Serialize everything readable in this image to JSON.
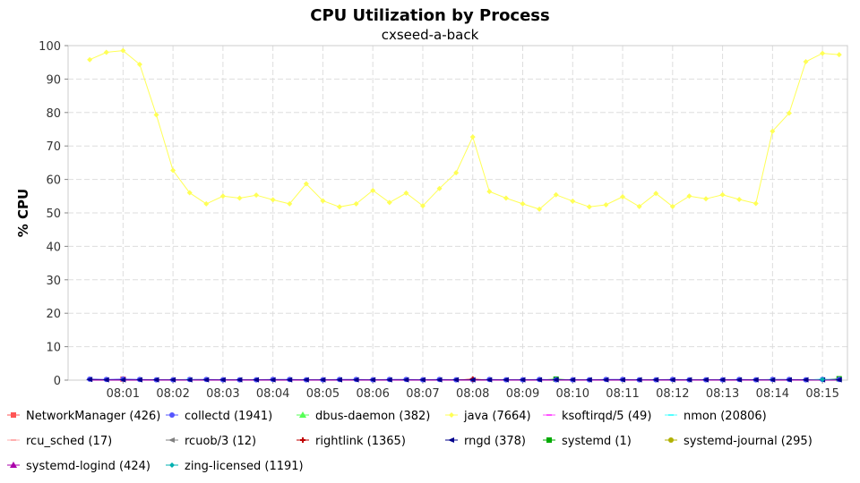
{
  "chart_data": {
    "type": "line",
    "title": "CPU Utilization by Process",
    "subtitle": "cxseed-a-back",
    "ylabel": "% CPU",
    "xlabel": "",
    "ylim": [
      0,
      100
    ],
    "yticks": [
      0,
      10,
      20,
      30,
      40,
      50,
      60,
      70,
      80,
      90,
      100
    ],
    "xlim": [
      "07:59:54",
      "08:15:30"
    ],
    "xticks": [
      "08:01",
      "08:02",
      "08:03",
      "08:04",
      "08:05",
      "08:06",
      "08:07",
      "08:08",
      "08:09",
      "08:10",
      "08:11",
      "08:12",
      "08:13",
      "08:14",
      "08:15"
    ],
    "grid": true,
    "legend_position": "bottom",
    "x": [
      "08:00:20",
      "08:00:40",
      "08:01:00",
      "08:01:20",
      "08:01:40",
      "08:02:00",
      "08:02:20",
      "08:02:40",
      "08:03:00",
      "08:03:20",
      "08:03:40",
      "08:04:00",
      "08:04:20",
      "08:04:40",
      "08:05:00",
      "08:05:20",
      "08:05:40",
      "08:06:00",
      "08:06:20",
      "08:06:40",
      "08:07:00",
      "08:07:20",
      "08:07:40",
      "08:08:00",
      "08:08:20",
      "08:08:40",
      "08:09:00",
      "08:09:20",
      "08:09:40",
      "08:10:00",
      "08:10:20",
      "08:10:40",
      "08:11:00",
      "08:11:20",
      "08:11:40",
      "08:12:00",
      "08:12:20",
      "08:12:40",
      "08:13:00",
      "08:13:20",
      "08:13:40",
      "08:14:00",
      "08:14:20",
      "08:14:40",
      "08:15:00",
      "08:15:20"
    ],
    "series": [
      {
        "name": "NetworkManager (426)",
        "color": "#ff5555",
        "marker": "square",
        "values": [
          0,
          0,
          0.3,
          0,
          0,
          0,
          0,
          0,
          0,
          0,
          0,
          0,
          0,
          0,
          0,
          0,
          0,
          0,
          0,
          0,
          0,
          0,
          0,
          0,
          0,
          0,
          0,
          0,
          0,
          0,
          0,
          0,
          0,
          0,
          0,
          0,
          0,
          0,
          0,
          0,
          0,
          0,
          0,
          0,
          0,
          0
        ]
      },
      {
        "name": "collectd (1941)",
        "color": "#5555ff",
        "marker": "circle",
        "values": [
          0.3,
          0.2,
          0.3,
          0.2,
          0.1,
          0.1,
          0.2,
          0.2,
          0.1,
          0.1,
          0.1,
          0.2,
          0.2,
          0.1,
          0.1,
          0.2,
          0.2,
          0.1,
          0.2,
          0.2,
          0.1,
          0.2,
          0.1,
          0.1,
          0.2,
          0.1,
          0.1,
          0.2,
          0.1,
          0.1,
          0.1,
          0.2,
          0.2,
          0.1,
          0.1,
          0.2,
          0.1,
          0.1,
          0.1,
          0.2,
          0.1,
          0.2,
          0.2,
          0.1,
          0.2,
          0.2
        ]
      },
      {
        "name": "dbus-daemon (382)",
        "color": "#55ff55",
        "marker": "triangle",
        "values": [
          0,
          0,
          0,
          0,
          0,
          0,
          0,
          0,
          0,
          0,
          0,
          0,
          0,
          0,
          0,
          0,
          0,
          0,
          0,
          0,
          0,
          0,
          0,
          0,
          0,
          0,
          0,
          0,
          0,
          0,
          0,
          0,
          0,
          0,
          0,
          0,
          0,
          0,
          0,
          0,
          0,
          0,
          0,
          0,
          0,
          0
        ]
      },
      {
        "name": "java (7664)",
        "color": "#ffff55",
        "marker": "diamond",
        "values": [
          95.8,
          98.0,
          98.5,
          94.4,
          79.3,
          62.7,
          56.0,
          52.7,
          55.0,
          54.4,
          55.3,
          53.9,
          52.7,
          58.7,
          53.6,
          51.8,
          52.7,
          56.7,
          53.1,
          55.9,
          52.1,
          57.3,
          62.0,
          72.7,
          56.4,
          54.4,
          52.7,
          51.1,
          55.4,
          53.5,
          51.8,
          52.4,
          54.8,
          51.9,
          55.8,
          51.9,
          55.0,
          54.2,
          55.4,
          54.0,
          52.8,
          74.4,
          79.8,
          95.2,
          97.7,
          97.3
        ]
      },
      {
        "name": "ksoftirqd/5 (49)",
        "color": "#ff55ff",
        "marker": "dash",
        "values": [
          0,
          0,
          0,
          0,
          0,
          0,
          0,
          0,
          0,
          0,
          0,
          0,
          0,
          0,
          0,
          0,
          0,
          0,
          0,
          0,
          0,
          0,
          0,
          0,
          0,
          0,
          0,
          0,
          0,
          0,
          0,
          0,
          0,
          0,
          0,
          0,
          0,
          0,
          0,
          0,
          0,
          0,
          0,
          0,
          0,
          0
        ]
      },
      {
        "name": "nmon (20806)",
        "color": "#55ffff",
        "marker": "dash",
        "values": [
          0,
          0,
          0,
          0,
          0,
          0,
          0.2,
          0,
          0,
          0,
          0,
          0,
          0,
          0,
          0,
          0,
          0,
          0,
          0,
          0,
          0,
          0,
          0,
          0,
          0,
          0,
          0,
          0,
          0,
          0,
          0,
          0,
          0,
          0,
          0,
          0,
          0,
          0,
          0,
          0,
          0,
          0.2,
          0,
          0,
          0.3,
          0
        ]
      },
      {
        "name": "rcu_sched (17)",
        "color": "#ffafaf",
        "marker": "dash",
        "values": [
          0,
          0,
          0,
          0,
          0,
          0,
          0,
          0,
          0,
          0,
          0,
          0,
          0,
          0,
          0,
          0,
          0,
          0,
          0,
          0,
          0,
          0,
          0,
          0,
          0,
          0,
          0,
          0,
          0,
          0,
          0,
          0,
          0,
          0,
          0,
          0,
          0,
          0,
          0,
          0,
          0,
          0,
          0,
          0,
          0,
          0
        ]
      },
      {
        "name": "rcuob/3 (12)",
        "color": "#808080",
        "marker": "arrow",
        "values": [
          0,
          0,
          0,
          0,
          0,
          0,
          0,
          0,
          0,
          0,
          0,
          0,
          0,
          0,
          0,
          0,
          0,
          0,
          0,
          0,
          0,
          0,
          0,
          0,
          0,
          0,
          0,
          0,
          0,
          0,
          0,
          0,
          0,
          0,
          0,
          0,
          0,
          0,
          0,
          0,
          0,
          0,
          0,
          0,
          0,
          0
        ]
      },
      {
        "name": "rightlink (1365)",
        "color": "#c00000",
        "marker": "cross",
        "values": [
          0,
          0,
          0,
          0,
          0,
          0,
          0,
          0,
          0,
          0,
          0,
          0,
          0,
          0,
          0,
          0,
          0,
          0,
          0,
          0,
          0,
          0,
          0,
          0.3,
          0,
          0,
          0,
          0,
          0,
          0,
          0,
          0,
          0,
          0,
          0,
          0,
          0,
          0,
          0,
          0,
          0,
          0,
          0,
          0,
          0,
          0
        ]
      },
      {
        "name": "rngd (378)",
        "color": "#00008b",
        "marker": "arrow",
        "values": [
          0.2,
          0.1,
          0.1,
          0.1,
          0.1,
          0.1,
          0.1,
          0.1,
          0.1,
          0.1,
          0.1,
          0.1,
          0.1,
          0.1,
          0.1,
          0.1,
          0.1,
          0.1,
          0.1,
          0.1,
          0.1,
          0.1,
          0.1,
          0.1,
          0.1,
          0.1,
          0.1,
          0.1,
          0.1,
          0.1,
          0.1,
          0.1,
          0.1,
          0.1,
          0.1,
          0.1,
          0.1,
          0.1,
          0.1,
          0.1,
          0.1,
          0.1,
          0.1,
          0.1,
          0.1,
          0.1
        ]
      },
      {
        "name": "systemd (1)",
        "color": "#00aa00",
        "marker": "square",
        "values": [
          0,
          0,
          0,
          0,
          0,
          0,
          0,
          0,
          0,
          0,
          0,
          0,
          0,
          0,
          0,
          0,
          0,
          0,
          0,
          0,
          0,
          0,
          0,
          0,
          0,
          0,
          0,
          0,
          0.3,
          0,
          0,
          0,
          0,
          0,
          0,
          0,
          0,
          0,
          0,
          0,
          0,
          0,
          0,
          0,
          0,
          0.4
        ]
      },
      {
        "name": "systemd-journal (295)",
        "color": "#b0b000",
        "marker": "circle",
        "values": [
          0,
          0,
          0,
          0,
          0,
          0,
          0,
          0,
          0,
          0,
          0,
          0,
          0,
          0,
          0,
          0,
          0,
          0,
          0,
          0,
          0,
          0,
          0,
          0,
          0,
          0,
          0,
          0,
          0,
          0,
          0,
          0,
          0,
          0,
          0,
          0,
          0,
          0,
          0,
          0,
          0,
          0,
          0,
          0,
          0,
          0
        ]
      },
      {
        "name": "systemd-logind (424)",
        "color": "#aa00aa",
        "marker": "triangle",
        "values": [
          0,
          0,
          0,
          0,
          0,
          0,
          0,
          0,
          0,
          0,
          0,
          0,
          0,
          0,
          0,
          0,
          0,
          0,
          0,
          0,
          0,
          0,
          0,
          0,
          0,
          0,
          0,
          0,
          0,
          0,
          0,
          0,
          0,
          0,
          0,
          0,
          0,
          0,
          0,
          0,
          0,
          0,
          0,
          0,
          0,
          0
        ]
      },
      {
        "name": "zing-licensed (1191)",
        "color": "#00b0b0",
        "marker": "diamond",
        "values": [
          0,
          0,
          0,
          0,
          0,
          0,
          0,
          0,
          0,
          0,
          0,
          0,
          0,
          0,
          0,
          0,
          0,
          0,
          0,
          0,
          0,
          0,
          0,
          0,
          0,
          0,
          0,
          0,
          0,
          0,
          0,
          0,
          0,
          0,
          0,
          0,
          0,
          0,
          0,
          0,
          0,
          0,
          0,
          0,
          0.2,
          0
        ]
      }
    ]
  }
}
